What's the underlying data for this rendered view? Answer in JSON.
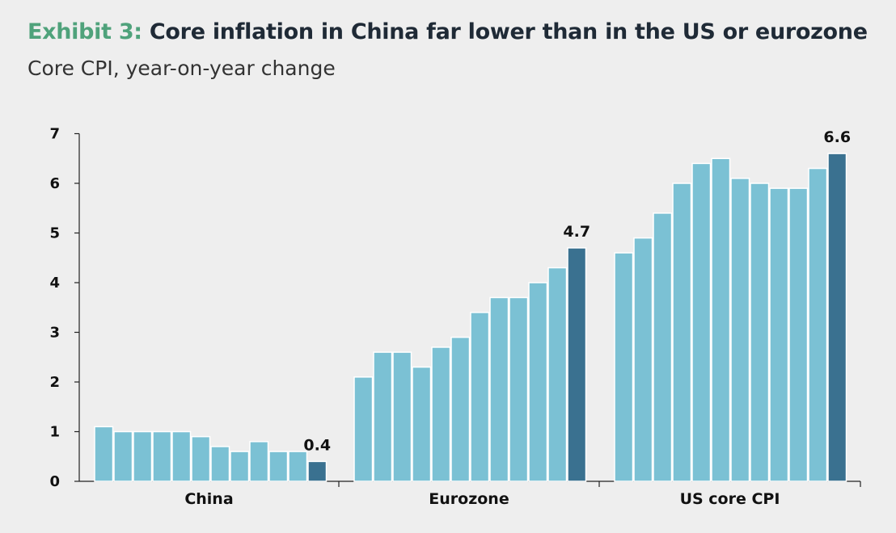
{
  "header": {
    "exhibit_label": "Exhibit 3:",
    "title": "Core inflation in China far lower than in the US or eurozone",
    "subtitle": "Core CPI, year-on-year change"
  },
  "colors": {
    "background": "#eeeeee",
    "bar": "#7bc1d4",
    "bar_highlight": "#3a7190",
    "title_prefix": "#4fa27b"
  },
  "chart_data": {
    "type": "bar",
    "ylim": [
      0,
      7
    ],
    "yticks": [
      0,
      1,
      2,
      3,
      4,
      5,
      6,
      7
    ],
    "grid": false,
    "groups": [
      {
        "name": "China",
        "values": [
          1.1,
          1.0,
          1.0,
          1.0,
          1.0,
          0.9,
          0.7,
          0.6,
          0.8,
          0.6,
          0.6,
          0.4
        ],
        "last_label": "0.4"
      },
      {
        "name": "Eurozone",
        "values": [
          2.1,
          2.6,
          2.6,
          2.3,
          2.7,
          2.9,
          3.4,
          3.7,
          3.7,
          4.0,
          4.3,
          4.7
        ],
        "last_label": "4.7"
      },
      {
        "name": "US core CPI",
        "values": [
          4.6,
          4.9,
          5.4,
          6.0,
          6.4,
          6.5,
          6.1,
          6.0,
          5.9,
          5.9,
          6.3,
          6.6
        ],
        "last_label": "6.6"
      }
    ]
  }
}
